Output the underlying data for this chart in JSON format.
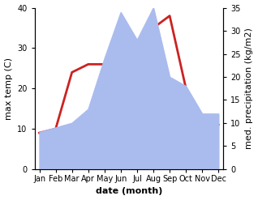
{
  "months": [
    "Jan",
    "Feb",
    "Mar",
    "Apr",
    "May",
    "Jun",
    "Jul",
    "Aug",
    "Sep",
    "Oct",
    "Nov",
    "Dec"
  ],
  "temperature": [
    9,
    10,
    24,
    26,
    26,
    33,
    30,
    35,
    38,
    20,
    13,
    11
  ],
  "precipitation": [
    8,
    9,
    10,
    13,
    24,
    34,
    28,
    35,
    20,
    18,
    12,
    12
  ],
  "temp_color": "#cc2222",
  "precip_color": "#aabbee",
  "temp_ylim": [
    0,
    40
  ],
  "precip_ylim": [
    0,
    35
  ],
  "temp_yticks": [
    0,
    10,
    20,
    30,
    40
  ],
  "precip_yticks": [
    0,
    5,
    10,
    15,
    20,
    25,
    30,
    35
  ],
  "temp_ylabel": "max temp (C)",
  "precip_ylabel": "med. precipitation (kg/m2)",
  "xlabel": "date (month)",
  "bg_color": "#ffffff",
  "temp_linewidth": 2.0,
  "label_fontsize": 8,
  "tick_fontsize": 7
}
